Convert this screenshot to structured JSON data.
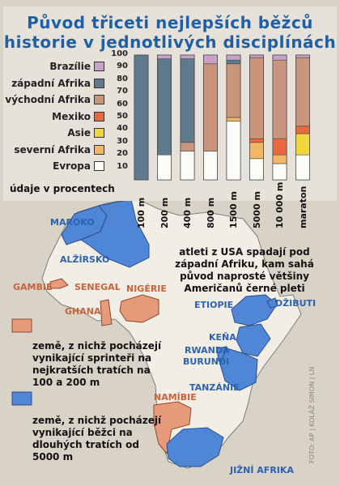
{
  "title_line1": "Původ třiceti nejlepších běžců",
  "title_line2": "historie v jednotlivých disciplínách",
  "units_note": "údaje v procentech",
  "map_note": "atleti z USA spadají pod západní Afriku, kam sahá původ naprosté většiny Američanů černé pleti",
  "map_key": [
    {
      "text": "země, z nichž pocházejí vynikající sprinteři na nejkratších tratích na 100 a 200 m",
      "color": "#e79a7a"
    },
    {
      "text": "země, z nichž pocházejí vynikající běžci na dlouhých tratích od 5000 m",
      "color": "#4f86d6"
    }
  ],
  "countries": {
    "maroko": "MAROKO",
    "alzirsko": "ALŽÍRSKO",
    "gambie": "GAMBIE",
    "senegal": "SENEGAL",
    "ghana": "GHANA",
    "nigerie": "NIGÉRIE",
    "etiopie": "ETIOPIE",
    "dzibuti": "DŽIBUTI",
    "kena": "KEŇA",
    "rwanda": "RWANDA",
    "burundi": "BURUNDI",
    "tanzanie": "TANZÁNIE",
    "namibie": "NAMÍBIE",
    "jizni_afrika": "JIŽNÍ AFRIKA"
  },
  "credit": "FOTO: AP | KOLÁŽ SIMON | LN",
  "colors": {
    "title": "#1f5fa6",
    "blue_map": "#4f86d6",
    "orange_map": "#e79a7a"
  },
  "chart_data": {
    "type": "bar",
    "stacked": true,
    "categories": [
      "100 m",
      "200 m",
      "400 m",
      "800 m",
      "1500 m",
      "5000 m",
      "10 000 m",
      "maraton"
    ],
    "ylim": [
      0,
      100
    ],
    "yticks": [
      10,
      20,
      30,
      40,
      50,
      60,
      70,
      80,
      90,
      100
    ],
    "series": [
      {
        "name": "Evropa",
        "color": "#fbfbf7",
        "values": [
          0,
          20,
          23,
          23,
          47,
          17,
          13,
          20
        ]
      },
      {
        "name": "severní Afrika",
        "color": "#f1b764",
        "values": [
          0,
          0,
          0,
          0,
          3,
          13,
          7,
          0
        ]
      },
      {
        "name": "Asie",
        "color": "#f2d640",
        "values": [
          0,
          0,
          0,
          0,
          0,
          0,
          0,
          17
        ]
      },
      {
        "name": "Mexiko",
        "color": "#e8683f",
        "values": [
          0,
          0,
          0,
          0,
          0,
          3,
          13,
          6
        ]
      },
      {
        "name": "východní Afrika",
        "color": "#c9957c",
        "values": [
          0,
          0,
          7,
          70,
          43,
          65,
          63,
          55
        ]
      },
      {
        "name": "západní Afrika",
        "color": "#5f7a8c",
        "values": [
          100,
          77,
          67,
          0,
          3,
          0,
          0,
          0
        ]
      },
      {
        "name": "Brazílie",
        "color": "#c8a2c8",
        "values": [
          0,
          3,
          3,
          7,
          4,
          2,
          4,
          2
        ]
      }
    ],
    "legend_order": [
      "Brazílie",
      "západní Afrika",
      "východní Afrika",
      "Mexiko",
      "Asie",
      "severní Afrika",
      "Evropa"
    ],
    "legend_placement": "left",
    "grid": false
  }
}
